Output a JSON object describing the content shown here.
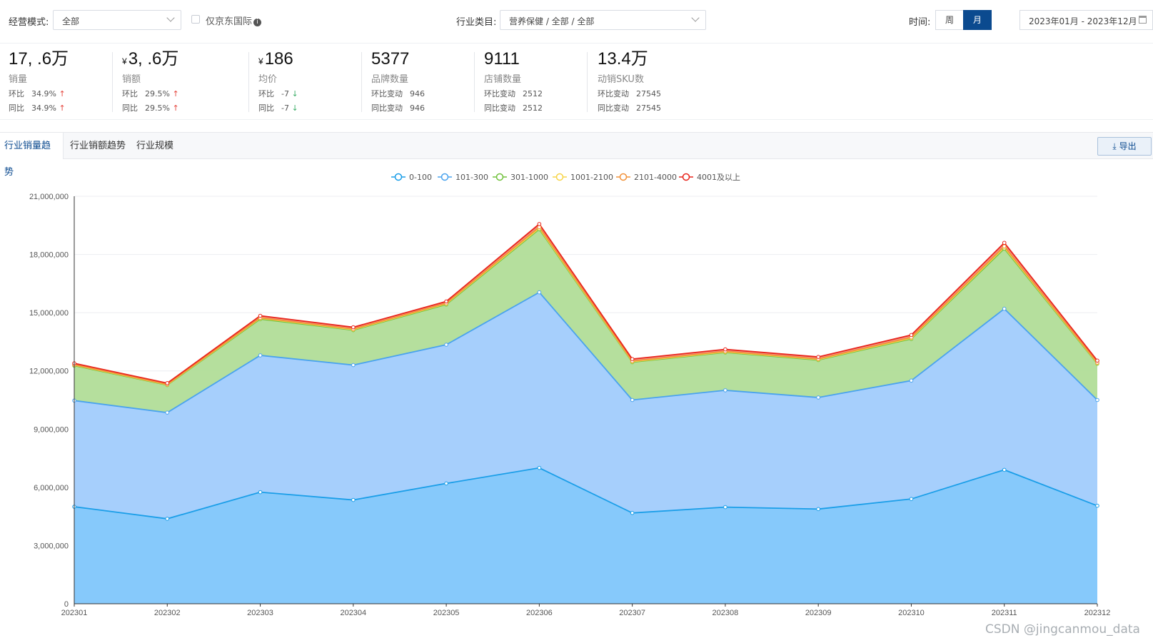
{
  "filters": {
    "mode_label": "经营模式:",
    "mode_value": "全部",
    "jd_intl_label": "仅京东国际",
    "industry_label": "行业类目:",
    "industry_value": "营养保健 / 全部 / 全部",
    "time_label": "时间:",
    "week_label": "周",
    "month_label": "月",
    "date_range": "2023年01月 - 2023年12月"
  },
  "kpis": [
    {
      "value": "17,   .6万",
      "label": "销量",
      "r1k": "环比",
      "r1v": "34.9%",
      "r1dir": "↑",
      "r2k": "同比",
      "r2v": "34.9%",
      "r2dir": "↑"
    },
    {
      "currency": "¥",
      "value": "3,   .6万",
      "label": "销额",
      "r1k": "环比",
      "r1v": "29.5%",
      "r1dir": "↑",
      "r2k": "同比",
      "r2v": "29.5%",
      "r2dir": "↑"
    },
    {
      "currency": "¥",
      "value": "186",
      "label": "均价",
      "r1k": "环比",
      "r1v": "-7",
      "r1dir": "↓",
      "r2k": "同比",
      "r2v": "-7",
      "r2dir": "↓"
    },
    {
      "value": "5377",
      "label": "品牌数量",
      "r1k": "环比变动",
      "r1v": "946",
      "r2k": "同比变动",
      "r2v": "946"
    },
    {
      "value": "9111",
      "label": "店铺数量",
      "r1k": "环比变动",
      "r1v": "2512",
      "r2k": "同比变动",
      "r2v": "2512"
    },
    {
      "value": "13.4万",
      "label": "动销SKU数",
      "r1k": "环比变动",
      "r1v": "27545",
      "r2k": "同比变动",
      "r2v": "27545"
    }
  ],
  "tabs": [
    "行业销量趋势",
    "行业销额趋势",
    "行业规模"
  ],
  "export_label": "导出",
  "watermark": "CSDN @jingcanmou_data",
  "chart_data": {
    "type": "area",
    "stacked": true,
    "categories": [
      "202301",
      "202302",
      "202303",
      "202304",
      "202305",
      "202306",
      "202307",
      "202308",
      "202309",
      "202310",
      "202311",
      "202312"
    ],
    "series": [
      {
        "name": "0-100",
        "color": "#1a9ee8",
        "fill": "#7fc6fb",
        "values": [
          5000000,
          4380000,
          5750000,
          5350000,
          6200000,
          7000000,
          4680000,
          4980000,
          4880000,
          5400000,
          6900000,
          5050000
        ]
      },
      {
        "name": "101-300",
        "color": "#4aa3ee",
        "fill": "#a1ccfc",
        "values": [
          5470000,
          5470000,
          7050000,
          6950000,
          7150000,
          9050000,
          5820000,
          6020000,
          5750000,
          6100000,
          8300000,
          5450000
        ]
      },
      {
        "name": "301-1000",
        "color": "#72c23d",
        "fill": "#b1dd98",
        "values": [
          1800000,
          1420000,
          1870000,
          1800000,
          2070000,
          3250000,
          1950000,
          1950000,
          1930000,
          2150000,
          3100000,
          1870000
        ]
      },
      {
        "name": "1001-2100",
        "color": "#f7d54a",
        "fill": "#f4e9a0",
        "values": [
          30000,
          20000,
          40000,
          30000,
          40000,
          50000,
          30000,
          30000,
          30000,
          40000,
          60000,
          30000
        ]
      },
      {
        "name": "2101-4000",
        "color": "#f2923a",
        "fill": "#f6c79a",
        "values": [
          20000,
          20000,
          30000,
          30000,
          30000,
          60000,
          30000,
          30000,
          30000,
          40000,
          60000,
          30000
        ]
      },
      {
        "name": "4001及以上",
        "color": "#e8251c",
        "fill": "#f08a83",
        "values": [
          70000,
          60000,
          100000,
          90000,
          90000,
          160000,
          100000,
          100000,
          100000,
          120000,
          180000,
          100000
        ]
      }
    ],
    "ylim": [
      0,
      21000000
    ],
    "yticks": [
      "0",
      "3,000,000",
      "6,000,000",
      "9,000,000",
      "12,000,000",
      "15,000,000",
      "18,000,000",
      "21,000,000"
    ],
    "legend": "top-center",
    "grid": true
  }
}
